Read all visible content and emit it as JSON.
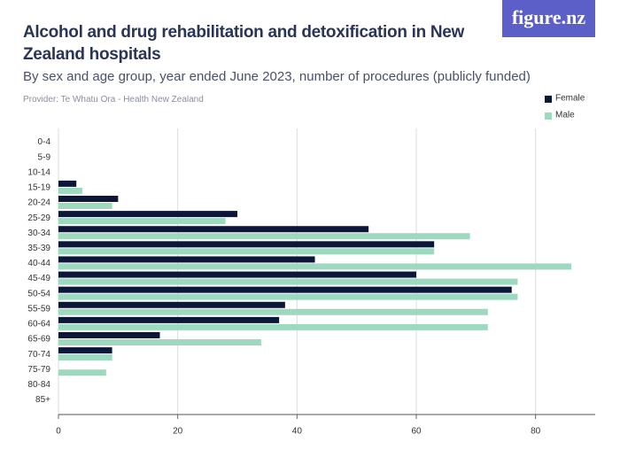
{
  "logo": "figure.nz",
  "chart_data": {
    "type": "hbar",
    "title": "Alcohol and drug rehabilitation and detoxification in New Zealand hospitals",
    "subtitle": "By sex and age group, year ended June 2023, number of procedures (publicly funded)",
    "source": "Provider: Te Whatu Ora - Health New Zealand",
    "categories": [
      "0-4",
      "5-9",
      "10-14",
      "15-19",
      "20-24",
      "25-29",
      "30-34",
      "35-39",
      "40-44",
      "45-49",
      "50-54",
      "55-59",
      "60-64",
      "65-69",
      "70-74",
      "75-79",
      "80-84",
      "85+"
    ],
    "series": [
      {
        "name": "Female",
        "color": "#0b1638",
        "values": [
          0,
          0,
          0,
          3,
          10,
          30,
          52,
          63,
          43,
          60,
          76,
          38,
          37,
          17,
          9,
          0,
          0,
          0
        ]
      },
      {
        "name": "Male",
        "color": "#9dd9bf",
        "values": [
          0,
          0,
          0,
          4,
          9,
          28,
          69,
          63,
          86,
          77,
          77,
          72,
          72,
          34,
          9,
          8,
          0,
          0
        ]
      }
    ],
    "xlim": [
      0,
      90
    ],
    "xticks": [
      0,
      20,
      40,
      60,
      80
    ],
    "grid": true,
    "legend": "top-right"
  }
}
